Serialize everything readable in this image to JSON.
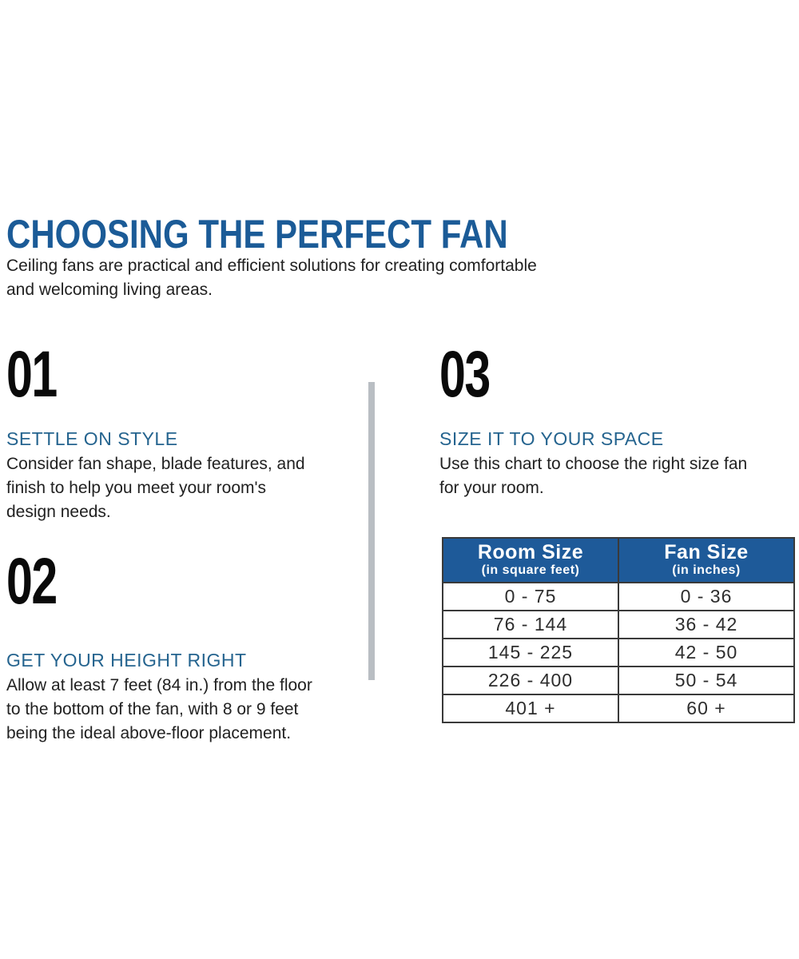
{
  "document": {
    "title": "CHOOSING THE PERFECT FAN",
    "intro_lines": [
      "Ceiling fans are practical and efficient solutions for creating comfortable",
      "and welcoming living areas."
    ]
  },
  "steps": [
    {
      "number": "01",
      "heading": "SETTLE ON STYLE",
      "lines": [
        "Consider fan shape, blade features, and",
        "finish to help you meet your room's",
        "design needs."
      ]
    },
    {
      "number": "02",
      "heading": "GET YOUR HEIGHT RIGHT",
      "lines": [
        "Allow at least 7 feet (84 in.) from the floor",
        "to the bottom of the fan, with 8 or 9 feet",
        "being the ideal above-floor placement."
      ]
    },
    {
      "number": "03",
      "heading": "SIZE IT TO YOUR SPACE",
      "lines": [
        "Use this chart to choose the right size fan",
        "for your room."
      ]
    }
  ],
  "size_chart": {
    "columns": [
      {
        "title": "Room Size",
        "subtitle": "(in square feet)"
      },
      {
        "title": "Fan Size",
        "subtitle": "(in inches)"
      }
    ],
    "rows": [
      [
        "0 - 75",
        "0 - 36"
      ],
      [
        "76 - 144",
        "36 - 42"
      ],
      [
        "145 - 225",
        "42 - 50"
      ],
      [
        "226 - 400",
        "50 - 54"
      ],
      [
        "401 +",
        "60 +"
      ]
    ]
  },
  "colors": {
    "title-blue": "#1b5b97",
    "heading-blue": "#25648f",
    "table-header-bg": "#1e5a99",
    "table-header-text": "#ffffff",
    "body-text": "#212121",
    "number-black": "#0a0a0a",
    "divider-gray": "#b9bec3",
    "table-border": "#3a3a3a",
    "background": "#ffffff"
  }
}
